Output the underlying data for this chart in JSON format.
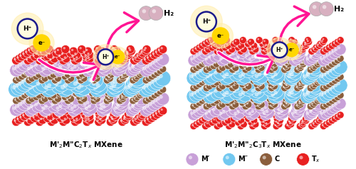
{
  "fig_width": 5.0,
  "fig_height": 2.38,
  "dpi": 100,
  "bg_color": "#ffffff",
  "arrow_color": "#ff1493",
  "arrow_fill": "#ffffff",
  "sphere_M_prime_color": "#c8a0d8",
  "sphere_M_double_prime_color": "#72c8f0",
  "sphere_C_color": "#8b5e3c",
  "sphere_Tx_color": "#e82020",
  "h2_color": "#d8b8c8",
  "hp_bg": "#fffde0",
  "hp_border": "#1a1a8c",
  "em_bg": "#ffd700",
  "em_border": "#ffd700",
  "left_label": "M′₂M″C₂T",
  "left_label_sub": "x",
  "left_label_rest": " MXene",
  "right_label": "M′₂M″₂C₃T",
  "right_label_sub": "x",
  "right_label_rest": " MXene",
  "legend_items": [
    {
      "label": "M′",
      "color": "#c8a0d8"
    },
    {
      "label": "M″",
      "color": "#72c8f0"
    },
    {
      "label": "C",
      "color": "#8b5e3c"
    },
    {
      "label": "Tₓ",
      "color": "#e82020"
    }
  ]
}
